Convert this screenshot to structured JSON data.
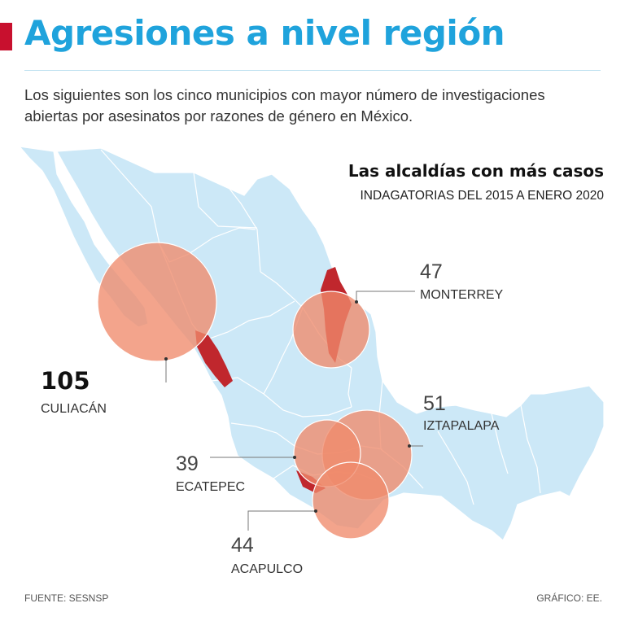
{
  "header": {
    "title": "Agresiones a nivel región",
    "intro": "Los siguientes son los cinco municipios con mayor número de investigaciones abiertas por asesinatos por razones de género en México."
  },
  "map": {
    "subtitle": "Las alcaldías con más casos",
    "subtitle2": "INDAGATORIAS DEL 2015 A ENERO 2020",
    "municipalities": [
      {
        "name": "CULIACÁN",
        "count": "105"
      },
      {
        "name": "MONTERREY",
        "count": "47"
      },
      {
        "name": "IZTAPALAPA",
        "count": "51"
      },
      {
        "name": "ECATEPEC",
        "count": "39"
      },
      {
        "name": "ACAPULCO",
        "count": "44"
      }
    ]
  },
  "footer": {
    "source": "FUENTE: SESNSP",
    "credit": "GRÁFICO: EE."
  },
  "colors": {
    "title": "#1fa3dc",
    "accent": "#c8102e",
    "land": "#cce8f7",
    "state_border": "#ffffff",
    "highlight": "#c0272d",
    "bubble": "#f08a6c"
  }
}
